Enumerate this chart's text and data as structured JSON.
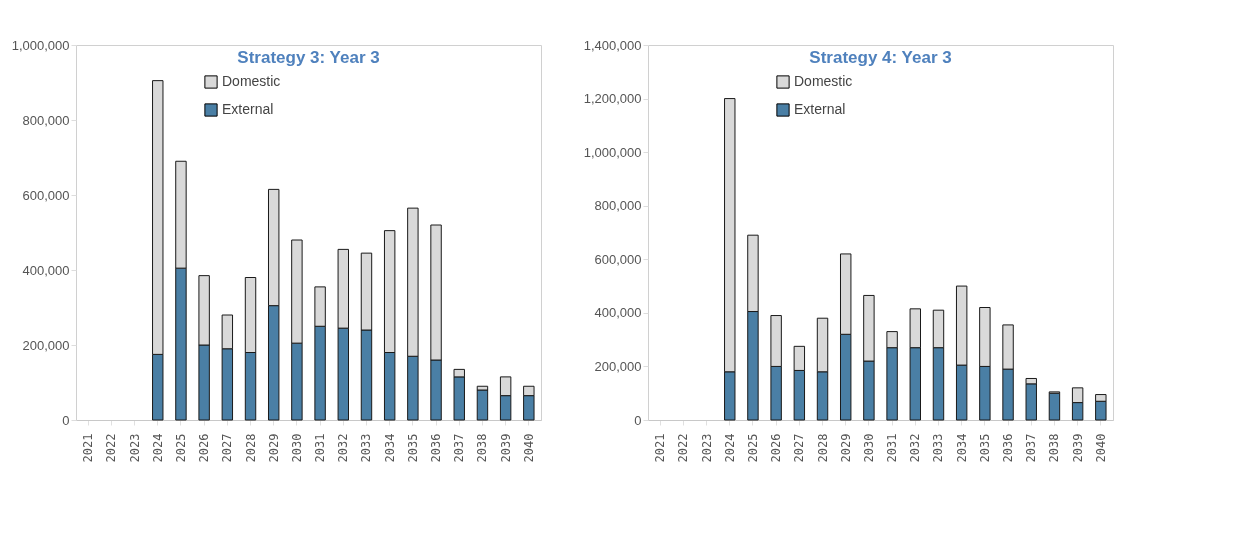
{
  "chart_data": [
    {
      "type": "bar",
      "title": "Strategy 3: Year 3",
      "stacked": true,
      "legend": "top left",
      "grid": false,
      "categories": [
        "2021",
        "2022",
        "2023",
        "2024",
        "2025",
        "2026",
        "2027",
        "2028",
        "2029",
        "2030",
        "2031",
        "2032",
        "2033",
        "2034",
        "2035",
        "2036",
        "2037",
        "2038",
        "2039",
        "2040"
      ],
      "ylim": [
        0,
        1000000
      ],
      "yticks": [
        {
          "value": 0,
          "label": "0"
        },
        {
          "value": 200000,
          "label": "200,000"
        },
        {
          "value": 400000,
          "label": "400,000"
        },
        {
          "value": 600000,
          "label": "600,000"
        },
        {
          "value": 800000,
          "label": "800,000"
        },
        {
          "value": 1000000,
          "label": "1,000,000"
        }
      ],
      "series": [
        {
          "name": "External",
          "color": "#4a7fa5",
          "values": [
            null,
            null,
            null,
            175000,
            405000,
            200000,
            190000,
            180000,
            305000,
            205000,
            250000,
            245000,
            240000,
            180000,
            170000,
            160000,
            115000,
            80000,
            65000,
            65000
          ]
        },
        {
          "name": "Domestic",
          "color": "#d9d9d9",
          "values": [
            null,
            null,
            null,
            730000,
            285000,
            185000,
            90000,
            200000,
            310000,
            275000,
            105000,
            210000,
            205000,
            325000,
            395000,
            360000,
            20000,
            10000,
            50000,
            25000
          ]
        }
      ]
    },
    {
      "type": "bar",
      "title": "Strategy 4: Year 3",
      "stacked": true,
      "legend": "top left",
      "grid": false,
      "categories": [
        "2021",
        "2022",
        "2023",
        "2024",
        "2025",
        "2026",
        "2027",
        "2028",
        "2029",
        "2030",
        "2031",
        "2032",
        "2033",
        "2034",
        "2035",
        "2036",
        "2037",
        "2038",
        "2039",
        "2040"
      ],
      "ylim": [
        0,
        1400000
      ],
      "yticks": [
        {
          "value": 0,
          "label": "0"
        },
        {
          "value": 200000,
          "label": "200,000"
        },
        {
          "value": 400000,
          "label": "400,000"
        },
        {
          "value": 600000,
          "label": "600,000"
        },
        {
          "value": 800000,
          "label": "800,000"
        },
        {
          "value": 1000000,
          "label": "1,000,000"
        },
        {
          "value": 1200000,
          "label": "1,200,000"
        },
        {
          "value": 1400000,
          "label": "1,400,000"
        }
      ],
      "series": [
        {
          "name": "External",
          "color": "#4a7fa5",
          "values": [
            null,
            null,
            null,
            180000,
            405000,
            200000,
            185000,
            180000,
            320000,
            220000,
            270000,
            270000,
            270000,
            205000,
            200000,
            190000,
            135000,
            100000,
            65000,
            70000
          ]
        },
        {
          "name": "Domestic",
          "color": "#d9d9d9",
          "values": [
            null,
            null,
            null,
            1020000,
            285000,
            190000,
            90000,
            200000,
            300000,
            245000,
            60000,
            145000,
            140000,
            295000,
            220000,
            165000,
            20000,
            5000,
            55000,
            25000
          ]
        }
      ]
    }
  ]
}
